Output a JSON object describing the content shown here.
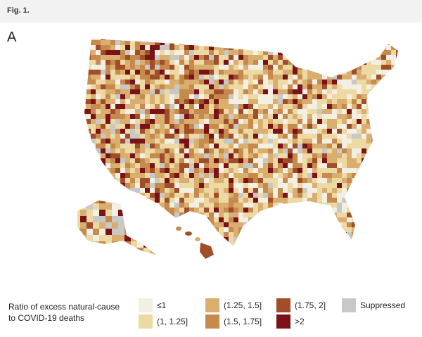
{
  "header": {
    "title": "Fig. 1."
  },
  "panel": {
    "label": "A"
  },
  "legend": {
    "title": "Ratio of excess natural-cause to COVID-19 deaths",
    "items": [
      {
        "label": "≤1",
        "color": "#f3efe3"
      },
      {
        "label": "(1, 1.25]",
        "color": "#ecd9a4"
      },
      {
        "label": "(1.25, 1.5]",
        "color": "#d9ae6e"
      },
      {
        "label": "(1.5, 1.75]",
        "color": "#c58a4c"
      },
      {
        "label": "(1.75, 2]",
        "color": "#a04e2a"
      },
      {
        "label": ">2",
        "color": "#7b1218"
      },
      {
        "label": "Suppressed",
        "color": "#c8c8c8"
      }
    ]
  }
}
